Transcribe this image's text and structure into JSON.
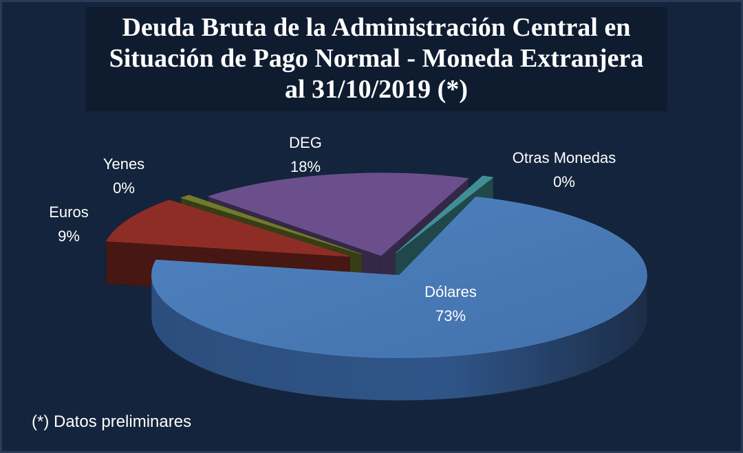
{
  "chart_data": {
    "type": "pie",
    "title_lines": [
      "Deuda Bruta de la Administración Central en",
      "Situación de Pago Normal - Moneda Extranjera",
      "al 31/10/2019 (*)"
    ],
    "slices": [
      {
        "label": "Dólares",
        "value": 73,
        "value_label": "73%",
        "color": "#4a7ab5"
      },
      {
        "label": "Euros",
        "value": 9,
        "value_label": "9%",
        "color": "#8e2d25"
      },
      {
        "label": "Yenes",
        "value": 0,
        "value_label": "0%",
        "color": "#6f7a2a"
      },
      {
        "label": "DEG",
        "value": 18,
        "value_label": "18%",
        "color": "#6a4f8c"
      },
      {
        "label": "Otras Monedas",
        "value": 0,
        "value_label": "0%",
        "color": "#3f8f95"
      }
    ],
    "style": "3d-exploded"
  },
  "footnote": "(*) Datos preliminares",
  "colors": {
    "background": "#14243c",
    "title_box": "#0f1c30",
    "text": "#ffffff"
  }
}
